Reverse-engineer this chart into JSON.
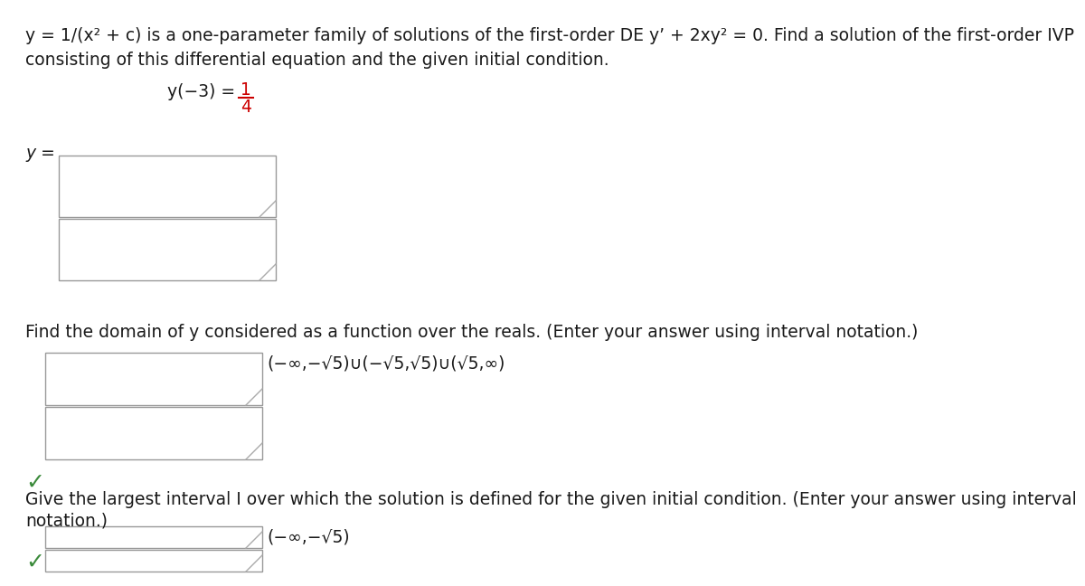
{
  "bg_color": "#ffffff",
  "text_color": "#1a1a1a",
  "red_color": "#cc0000",
  "green_color": "#3a8a3a",
  "line1": "y = 1/(x² + c) is a one-parameter family of solutions of the first-order DE y’ + 2xy² = 0. Find a solution of the first-order IVP",
  "line2": "consisting of this differential equation and the given initial condition.",
  "ivp_text": "y(−3) = ",
  "ivp_num": "1",
  "ivp_den": "4",
  "y_eq_label": "y =",
  "domain_question": "Find the domain of y considered as a function over the reals. (Enter your answer using interval notation.)",
  "domain_answer": "(−∞,−√5)∪(−√5,√5)∪(√5,∞)",
  "interval_q1": "Give the largest interval I over which the solution is defined for the given initial condition. (Enter your answer using interval",
  "interval_q2": "notation.)",
  "interval_answer": "(−∞,−√5)",
  "font_size": 13.5,
  "font_size_check": 18
}
